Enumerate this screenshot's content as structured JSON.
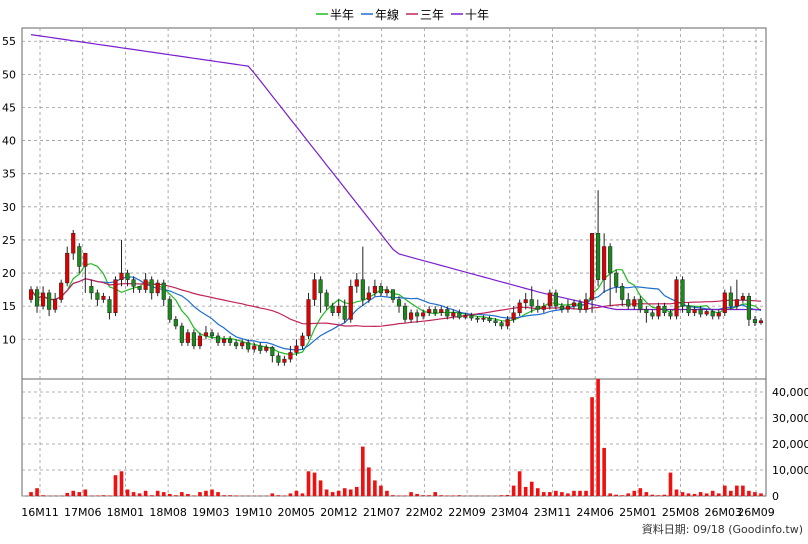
{
  "chart_data": {
    "type": "candlestick",
    "legend": [
      {
        "name": "半年",
        "color": "#22bb22"
      },
      {
        "name": "年線",
        "color": "#1f6fd0"
      },
      {
        "name": "三年",
        "color": "#c0245a"
      },
      {
        "name": "十年",
        "color": "#7a1fd0"
      }
    ],
    "x_ticks": [
      "16M11",
      "17M06",
      "18M01",
      "18M08",
      "19M03",
      "19M10",
      "20M05",
      "20M12",
      "21M07",
      "22M02",
      "22M09",
      "23M04",
      "23M11",
      "24M06",
      "25M01",
      "25M08",
      "26M03",
      "26M09"
    ],
    "price_axis": {
      "ticks": [
        10,
        15,
        20,
        25,
        30,
        35,
        40,
        45,
        50,
        55
      ],
      "ylim": [
        4,
        57
      ]
    },
    "volume_axis": {
      "ticks": [
        0,
        10000,
        20000,
        30000,
        40000
      ],
      "tick_labels": [
        "0",
        "10,000",
        "20,000",
        "30,000",
        "40,000"
      ],
      "ylim": [
        0,
        45000
      ]
    },
    "colors": {
      "up": "#e00000",
      "down": "#1a8a1a",
      "volume": "#ee1111",
      "grid": "#999999"
    },
    "footer": "資料日期: 09/18  (Goodinfo.tw)",
    "candles": [
      [
        16,
        17.5,
        15.5,
        18
      ],
      [
        17.5,
        15,
        14,
        18
      ],
      [
        15,
        17,
        14.5,
        18
      ],
      [
        17,
        14.5,
        13.5,
        17.5
      ],
      [
        14.5,
        16,
        14,
        17
      ],
      [
        16,
        18.5,
        15.5,
        19
      ],
      [
        18.5,
        23,
        18,
        24
      ],
      [
        23,
        26,
        22,
        26.5
      ],
      [
        24,
        21,
        20,
        24.5
      ],
      [
        21,
        23,
        17,
        23
      ],
      [
        18,
        17,
        16,
        19
      ],
      [
        17,
        16,
        15,
        17.5
      ],
      [
        16,
        16.5,
        15.5,
        17
      ],
      [
        16,
        14,
        13,
        16.5
      ],
      [
        14,
        19,
        13.5,
        19.5
      ],
      [
        19,
        20,
        18,
        25
      ],
      [
        20,
        19,
        18,
        20.5
      ],
      [
        19,
        18,
        17,
        19.5
      ],
      [
        18,
        17.5,
        17,
        18
      ],
      [
        17.5,
        19,
        17,
        20
      ],
      [
        19,
        17,
        16,
        19.5
      ],
      [
        17,
        18.5,
        16.5,
        19
      ],
      [
        18.5,
        16,
        15,
        19
      ],
      [
        16,
        13,
        12.5,
        16.5
      ],
      [
        13,
        12,
        11.5,
        13.5
      ],
      [
        12,
        9.5,
        9,
        12.5
      ],
      [
        9.5,
        11,
        9,
        11.5
      ],
      [
        11,
        9,
        8.5,
        11.5
      ],
      [
        9,
        10.5,
        8.5,
        11
      ],
      [
        10.5,
        11,
        10,
        12
      ],
      [
        11,
        10.5,
        10,
        11.5
      ],
      [
        10.5,
        9.5,
        9,
        11
      ],
      [
        9.5,
        10,
        9,
        10.5
      ],
      [
        10,
        9.5,
        9,
        10.5
      ],
      [
        9.5,
        9,
        8.5,
        10
      ],
      [
        9,
        9.5,
        8.5,
        10
      ],
      [
        9.5,
        8.5,
        8,
        10
      ],
      [
        8.5,
        9,
        8,
        9.5
      ],
      [
        9,
        8.3,
        7.8,
        9.5
      ],
      [
        8.3,
        8.8,
        8,
        9.2
      ],
      [
        8.8,
        7.5,
        6.5,
        9
      ],
      [
        7.5,
        6.5,
        6,
        8
      ],
      [
        6.5,
        7,
        6,
        7.5
      ],
      [
        7,
        8,
        6.5,
        9
      ],
      [
        8,
        9,
        7.5,
        10
      ],
      [
        9,
        10.5,
        8.5,
        11
      ],
      [
        10.5,
        16,
        10,
        17
      ],
      [
        16,
        19,
        15,
        20
      ],
      [
        19,
        17,
        14,
        19.5
      ],
      [
        17,
        15,
        14.5,
        17.5
      ],
      [
        15,
        14,
        13.5,
        15.5
      ],
      [
        14,
        15,
        13.5,
        16
      ],
      [
        15,
        13,
        12.5,
        16
      ],
      [
        13,
        18,
        12.5,
        19
      ],
      [
        18,
        19,
        17,
        20
      ],
      [
        19,
        16,
        15,
        24
      ],
      [
        16,
        17,
        15.5,
        18
      ],
      [
        17,
        18,
        16.5,
        19
      ],
      [
        18,
        17,
        16.5,
        18.5
      ],
      [
        17,
        17.5,
        16.5,
        18
      ],
      [
        17.5,
        16,
        15.5,
        17.5
      ],
      [
        16,
        15,
        14,
        16.5
      ],
      [
        15,
        13,
        12.5,
        15.5
      ],
      [
        13,
        14,
        12.5,
        14.5
      ],
      [
        14,
        13.5,
        12.5,
        14.5
      ],
      [
        13.5,
        14,
        13,
        14.5
      ],
      [
        14,
        14.5,
        13.5,
        15
      ],
      [
        14.5,
        14,
        13.5,
        15
      ],
      [
        14,
        14.5,
        13.5,
        15
      ],
      [
        14.5,
        13.5,
        13,
        15
      ],
      [
        13.5,
        14,
        13,
        14.5
      ],
      [
        14,
        13.3,
        13,
        14.5
      ],
      [
        13.3,
        13.6,
        13,
        14
      ],
      [
        13.6,
        13.2,
        12.8,
        14
      ],
      [
        13.2,
        13,
        12.5,
        13.5
      ],
      [
        13,
        13.2,
        12.6,
        13.6
      ],
      [
        13.2,
        12.8,
        12.5,
        13.5
      ],
      [
        12.8,
        12.5,
        12,
        13.2
      ],
      [
        12.5,
        12,
        11.5,
        12.8
      ],
      [
        12,
        13,
        11.5,
        13.5
      ],
      [
        13,
        14,
        12.5,
        15
      ],
      [
        14,
        15.5,
        13.5,
        16
      ],
      [
        15.5,
        16,
        14.5,
        17
      ],
      [
        16,
        15,
        14,
        18
      ],
      [
        15,
        14.5,
        14,
        16
      ],
      [
        14.5,
        15,
        14,
        15.5
      ],
      [
        15,
        17,
        14.5,
        17.5
      ],
      [
        17,
        15,
        14.5,
        17.5
      ],
      [
        15,
        14.5,
        14,
        15.5
      ],
      [
        14.5,
        15,
        14,
        16
      ],
      [
        15,
        15.5,
        14.5,
        16
      ],
      [
        15.5,
        14.5,
        14,
        16
      ],
      [
        14.5,
        16,
        14,
        17
      ],
      [
        16,
        26,
        14,
        26
      ],
      [
        26,
        19,
        18,
        32.5
      ],
      [
        19,
        24,
        17,
        26
      ],
      [
        24,
        20,
        15,
        24.5
      ],
      [
        20,
        18,
        17,
        20.5
      ],
      [
        18,
        16,
        15,
        18.5
      ],
      [
        16,
        15,
        14.5,
        17
      ],
      [
        15,
        16,
        14.5,
        16.5
      ],
      [
        16,
        14.5,
        14,
        16.5
      ],
      [
        14.5,
        14,
        12.5,
        15
      ],
      [
        14,
        13.5,
        13,
        14.5
      ],
      [
        13.5,
        15,
        13,
        15.5
      ],
      [
        15,
        14,
        13.5,
        15.5
      ],
      [
        14,
        13.5,
        13,
        14.5
      ],
      [
        13.5,
        19,
        13,
        19.5
      ],
      [
        19,
        15,
        14,
        19.5
      ],
      [
        15,
        14,
        13.5,
        15.5
      ],
      [
        14,
        14.5,
        13.5,
        15
      ],
      [
        14.5,
        13.8,
        13.3,
        15
      ],
      [
        13.8,
        14.2,
        13.5,
        14.5
      ],
      [
        14.2,
        13.5,
        13,
        14.5
      ],
      [
        13.5,
        14,
        13,
        14.5
      ],
      [
        14,
        17,
        13.5,
        17.5
      ],
      [
        17,
        15,
        14.5,
        18
      ],
      [
        15,
        16,
        14.5,
        19
      ],
      [
        16,
        16.5,
        15.5,
        17
      ],
      [
        16.5,
        13,
        12,
        17
      ],
      [
        13,
        12.5,
        12,
        13.5
      ],
      [
        12.5,
        12.8,
        12.2,
        13.2
      ]
    ],
    "volumes": [
      1500,
      3000,
      300,
      100,
      100,
      100,
      1200,
      2000,
      1500,
      2500,
      100,
      200,
      300,
      200,
      8000,
      9500,
      2500,
      1500,
      1000,
      2000,
      300,
      2000,
      1500,
      800,
      300,
      1500,
      800,
      200,
      1500,
      2000,
      2500,
      1500,
      300,
      300,
      200,
      100,
      100,
      100,
      100,
      100,
      1000,
      300,
      200,
      1000,
      2000,
      1000,
      9500,
      9000,
      6000,
      2500,
      1500,
      2000,
      3000,
      2500,
      3500,
      19000,
      11000,
      6000,
      4000,
      2000,
      300,
      200,
      200,
      1500,
      800,
      300,
      300,
      1500,
      300,
      200,
      200,
      300,
      100,
      100,
      100,
      100,
      100,
      100,
      300,
      400,
      4000,
      9500,
      3500,
      5500,
      3000,
      1500,
      1500,
      2000,
      1500,
      1000,
      2000,
      2000,
      2000,
      38000,
      45000,
      18500,
      1000,
      500,
      300,
      1000,
      2000,
      3000,
      1500,
      500,
      300,
      500,
      9000,
      2500,
      1500,
      1000,
      800,
      1500,
      1000,
      2000,
      1000,
      4000,
      2000,
      4000,
      4000,
      2000,
      1500,
      1000
    ]
  }
}
